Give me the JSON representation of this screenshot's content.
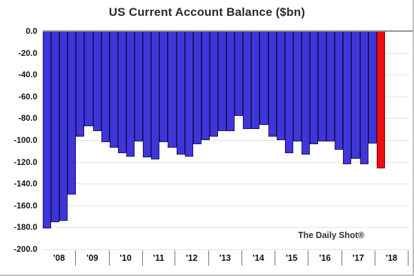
{
  "title": "US Current Account Balance ($bn)",
  "watermark": "The Daily Shot®",
  "colors": {
    "bar_blue": "#3f36d9",
    "bar_blue_border": "#1b1464",
    "bar_red": "#ea0d12",
    "bar_red_border": "#7d060a",
    "zero_line": "#8f8f8f",
    "gridline": "#e2e2e2"
  },
  "chart_data": {
    "type": "bar",
    "title": "US Current Account Balance ($bn)",
    "ylabel": "",
    "xlabel": "",
    "unit": "$bn",
    "ylim": [
      -200,
      0
    ],
    "grid": true,
    "legend_position": "none",
    "y_tick_labels": [
      "0.0",
      "-20.0",
      "-40.0",
      "-60.0",
      "-80.0",
      "-100.0",
      "-120.0",
      "-140.0",
      "-160.0",
      "-180.0",
      "-200.0"
    ],
    "x_year_labels": [
      "'08",
      "'09",
      "'10",
      "'11",
      "'12",
      "'13",
      "'14",
      "'15",
      "'16",
      "'17",
      "'18"
    ],
    "highlight_index": 40,
    "bars": [
      {
        "quarter": "2008 Q1",
        "value": -181
      },
      {
        "quarter": "2008 Q2",
        "value": -175
      },
      {
        "quarter": "2008 Q3",
        "value": -174
      },
      {
        "quarter": "2008 Q4",
        "value": -150
      },
      {
        "quarter": "2009 Q1",
        "value": -97
      },
      {
        "quarter": "2009 Q2",
        "value": -87
      },
      {
        "quarter": "2009 Q3",
        "value": -92
      },
      {
        "quarter": "2009 Q4",
        "value": -102
      },
      {
        "quarter": "2010 Q1",
        "value": -107
      },
      {
        "quarter": "2010 Q2",
        "value": -112
      },
      {
        "quarter": "2010 Q3",
        "value": -115
      },
      {
        "quarter": "2010 Q4",
        "value": -101
      },
      {
        "quarter": "2011 Q1",
        "value": -116
      },
      {
        "quarter": "2011 Q2",
        "value": -118
      },
      {
        "quarter": "2011 Q3",
        "value": -102
      },
      {
        "quarter": "2011 Q4",
        "value": -107
      },
      {
        "quarter": "2012 Q1",
        "value": -113
      },
      {
        "quarter": "2012 Q2",
        "value": -115
      },
      {
        "quarter": "2012 Q3",
        "value": -104
      },
      {
        "quarter": "2012 Q4",
        "value": -100
      },
      {
        "quarter": "2013 Q1",
        "value": -97
      },
      {
        "quarter": "2013 Q2",
        "value": -92
      },
      {
        "quarter": "2013 Q3",
        "value": -92
      },
      {
        "quarter": "2013 Q4",
        "value": -78
      },
      {
        "quarter": "2014 Q1",
        "value": -90
      },
      {
        "quarter": "2014 Q2",
        "value": -90
      },
      {
        "quarter": "2014 Q3",
        "value": -86
      },
      {
        "quarter": "2014 Q4",
        "value": -97
      },
      {
        "quarter": "2015 Q1",
        "value": -100
      },
      {
        "quarter": "2015 Q2",
        "value": -112
      },
      {
        "quarter": "2015 Q3",
        "value": -101
      },
      {
        "quarter": "2015 Q4",
        "value": -113
      },
      {
        "quarter": "2016 Q1",
        "value": -104
      },
      {
        "quarter": "2016 Q2",
        "value": -101
      },
      {
        "quarter": "2016 Q3",
        "value": -101
      },
      {
        "quarter": "2016 Q4",
        "value": -109
      },
      {
        "quarter": "2017 Q1",
        "value": -122
      },
      {
        "quarter": "2017 Q2",
        "value": -117
      },
      {
        "quarter": "2017 Q3",
        "value": -122
      },
      {
        "quarter": "2017 Q4",
        "value": -103
      },
      {
        "quarter": "2018 Q1",
        "value": -126
      }
    ]
  }
}
